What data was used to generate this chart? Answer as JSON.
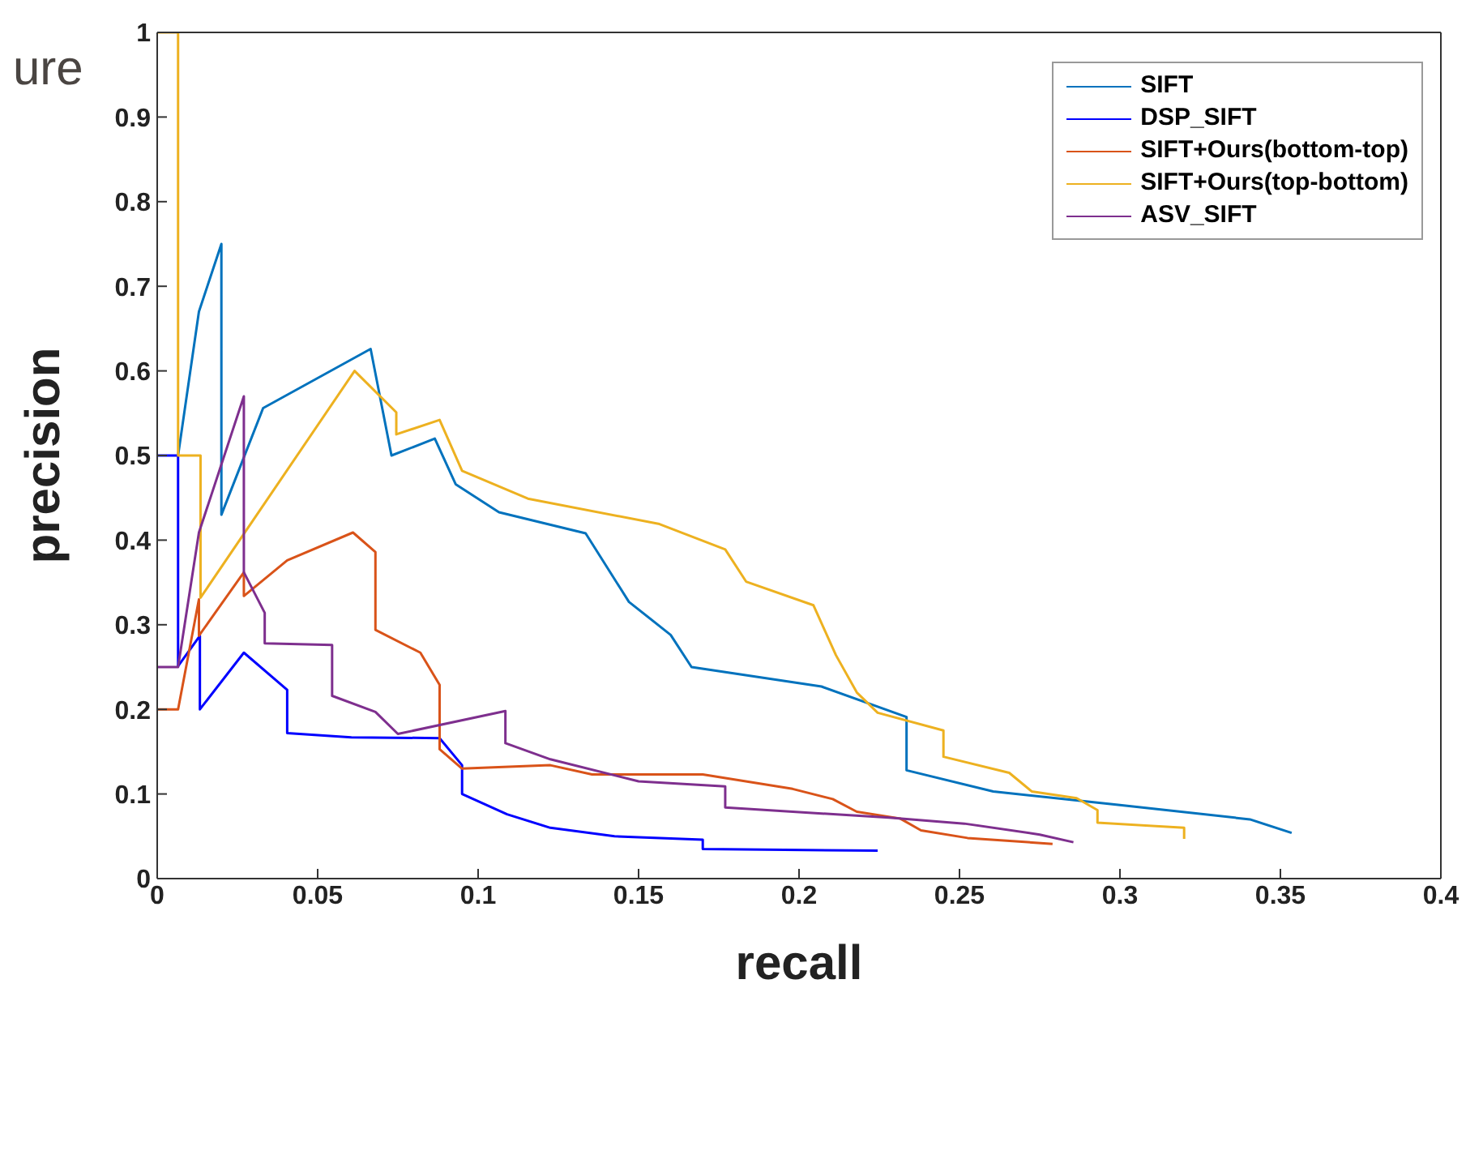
{
  "chart_data": {
    "type": "line",
    "xlabel": "recall",
    "ylabel": "precision",
    "annotations": [
      "ure"
    ],
    "xlim": [
      0,
      0.4
    ],
    "xticks": [
      0,
      0.05,
      0.1,
      0.15,
      0.2,
      0.25,
      0.3,
      0.35,
      0.4
    ],
    "ylim": [
      0,
      1
    ],
    "yticks": [
      0,
      0.1,
      0.2,
      0.3,
      0.4,
      0.5,
      0.6,
      0.7,
      0.8,
      0.9,
      1
    ],
    "legend": "top right",
    "marker": "none",
    "line_style": "solid",
    "series": [
      {
        "name": "SIFT",
        "color": "#0072bd",
        "x": [
          0.0065,
          0.013,
          0.02,
          0.02,
          0.033,
          0.0665,
          0.073,
          0.0865,
          0.093,
          0.1065,
          0.1335,
          0.147,
          0.16,
          0.1665,
          0.207,
          0.2335,
          0.2335,
          0.2605,
          0.3,
          0.3405,
          0.3535
        ],
        "values": [
          0.5,
          0.67,
          0.75,
          0.43,
          0.556,
          0.626,
          0.5,
          0.52,
          0.466,
          0.433,
          0.408,
          0.327,
          0.288,
          0.25,
          0.227,
          0.191,
          0.128,
          0.103,
          0.087,
          0.07,
          0.054
        ]
      },
      {
        "name": "DSP_SIFT",
        "color": "#0000ff",
        "x": [
          0,
          0.0065,
          0.0065,
          0.0133,
          0.0133,
          0.027,
          0.0405,
          0.0405,
          0.0605,
          0.088,
          0.095,
          0.095,
          0.109,
          0.1225,
          0.1425,
          0.17,
          0.17,
          0.2245
        ],
        "values": [
          0.5,
          0.5,
          0.251,
          0.287,
          0.2,
          0.267,
          0.223,
          0.172,
          0.167,
          0.166,
          0.134,
          0.1,
          0.076,
          0.06,
          0.05,
          0.046,
          0.035,
          0.033
        ]
      },
      {
        "name": "SIFT+Ours(bottom-top)",
        "color": "#d95319",
        "x": [
          0,
          0.0065,
          0.013,
          0.013,
          0.027,
          0.027,
          0.0405,
          0.061,
          0.068,
          0.068,
          0.082,
          0.088,
          0.088,
          0.095,
          0.1225,
          0.1355,
          0.17,
          0.198,
          0.2105,
          0.218,
          0.2315,
          0.238,
          0.2525,
          0.279
        ],
        "values": [
          0.2,
          0.2,
          0.33,
          0.287,
          0.362,
          0.334,
          0.376,
          0.409,
          0.386,
          0.294,
          0.267,
          0.229,
          0.153,
          0.13,
          0.134,
          0.123,
          0.123,
          0.106,
          0.094,
          0.079,
          0.071,
          0.057,
          0.048,
          0.041
        ]
      },
      {
        "name": "SIFT+Ours(top-bottom)",
        "color": "#edb120",
        "x": [
          0,
          0.0065,
          0.0065,
          0.0135,
          0.0135,
          0.0615,
          0.0745,
          0.0745,
          0.088,
          0.095,
          0.1155,
          0.1565,
          0.177,
          0.1835,
          0.2045,
          0.2115,
          0.218,
          0.2245,
          0.245,
          0.245,
          0.2655,
          0.2725,
          0.2865,
          0.293,
          0.293,
          0.32,
          0.32
        ],
        "values": [
          1,
          1,
          0.5,
          0.5,
          0.332,
          0.6,
          0.551,
          0.525,
          0.542,
          0.482,
          0.449,
          0.419,
          0.389,
          0.351,
          0.323,
          0.264,
          0.22,
          0.196,
          0.175,
          0.144,
          0.125,
          0.103,
          0.095,
          0.081,
          0.066,
          0.06,
          0.047
        ]
      },
      {
        "name": "ASV_SIFT",
        "color": "#7e2f8e",
        "x": [
          0,
          0.0065,
          0.013,
          0.027,
          0.027,
          0.0335,
          0.0335,
          0.0545,
          0.0545,
          0.068,
          0.075,
          0.1085,
          0.1085,
          0.1225,
          0.15,
          0.177,
          0.177,
          0.228,
          0.2515,
          0.275,
          0.2855
        ],
        "values": [
          0.25,
          0.25,
          0.409,
          0.57,
          0.362,
          0.314,
          0.278,
          0.276,
          0.216,
          0.197,
          0.171,
          0.198,
          0.16,
          0.141,
          0.115,
          0.109,
          0.084,
          0.072,
          0.065,
          0.052,
          0.043
        ]
      }
    ]
  }
}
